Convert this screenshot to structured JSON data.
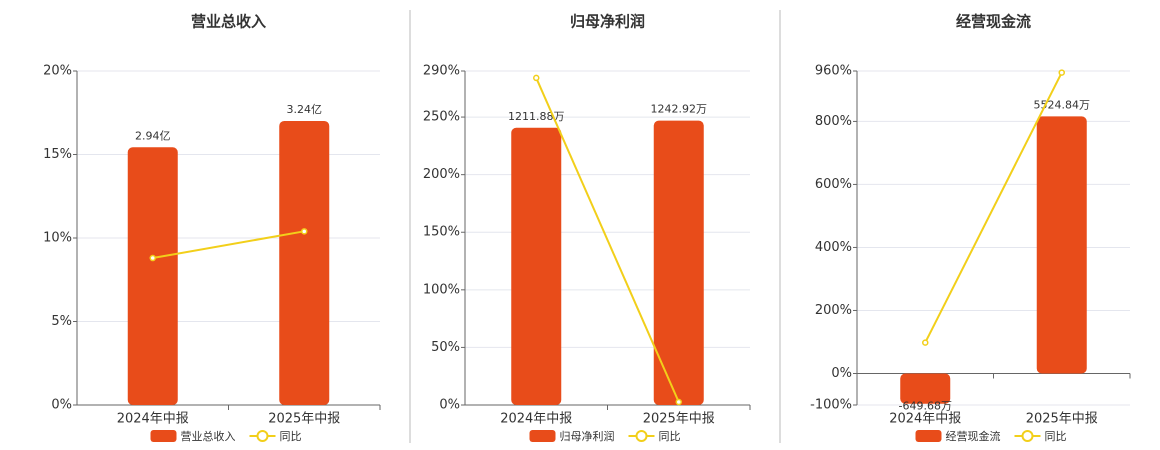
{
  "chart_data": [
    {
      "type": "bar",
      "title": "营业总收入",
      "categories": [
        "2024年中报",
        "2025年中报"
      ],
      "ylim": [
        0,
        20
      ],
      "yticks": [
        {
          "value": 0,
          "label": "0%"
        },
        {
          "value": 5,
          "label": "5%"
        },
        {
          "value": 10,
          "label": "10%"
        },
        {
          "value": 15,
          "label": "15%"
        },
        {
          "value": 20,
          "label": "20%"
        }
      ],
      "y2lim": [
        0,
        3.81
      ],
      "grid": true,
      "series": [
        {
          "name": "营业总收入",
          "type": "bar",
          "axis": "y2",
          "color": "#e84c1a",
          "values": [
            2.94,
            3.24
          ],
          "value_labels": [
            "2.94亿",
            "3.24亿"
          ]
        },
        {
          "name": "同比",
          "type": "line",
          "color": "#f2cf1a",
          "values": [
            8.8,
            10.4
          ]
        }
      ]
    },
    {
      "type": "bar",
      "title": "归母净利润",
      "categories": [
        "2024年中报",
        "2025年中报"
      ],
      "ylim": [
        0,
        290
      ],
      "yticks": [
        {
          "value": 0,
          "label": "0%"
        },
        {
          "value": 50,
          "label": "50%"
        },
        {
          "value": 100,
          "label": "100%"
        },
        {
          "value": 150,
          "label": "150%"
        },
        {
          "value": 200,
          "label": "200%"
        },
        {
          "value": 250,
          "label": "250%"
        },
        {
          "value": 290,
          "label": "290%"
        }
      ],
      "y2lim": [
        0,
        1460
      ],
      "grid": true,
      "series": [
        {
          "name": "归母净利润",
          "type": "bar",
          "axis": "y2",
          "color": "#e84c1a",
          "values": [
            1211.88,
            1242.92
          ],
          "value_labels": [
            "1211.88万",
            "1242.92万"
          ]
        },
        {
          "name": "同比",
          "type": "line",
          "color": "#f2cf1a",
          "values": [
            284,
            2.6
          ]
        }
      ]
    },
    {
      "type": "bar",
      "title": "经营现金流",
      "categories": [
        "2024年中报",
        "2025年中报"
      ],
      "ylim": [
        -100,
        960
      ],
      "yticks": [
        {
          "value": -100,
          "label": "-100%"
        },
        {
          "value": 0,
          "label": "0%"
        },
        {
          "value": 200,
          "label": "200%"
        },
        {
          "value": 400,
          "label": "400%"
        },
        {
          "value": 600,
          "label": "600%"
        },
        {
          "value": 800,
          "label": "800%"
        },
        {
          "value": 960,
          "label": "960%"
        }
      ],
      "y2lim": [
        -677,
        6500
      ],
      "grid": true,
      "series": [
        {
          "name": "经营现金流",
          "type": "bar",
          "axis": "y2",
          "color": "#e84c1a",
          "values": [
            -649.68,
            5524.84
          ],
          "value_labels": [
            "-649.68万",
            "5524.84万"
          ]
        },
        {
          "name": "同比",
          "type": "line",
          "color": "#f2cf1a",
          "values": [
            98,
            955
          ]
        }
      ]
    }
  ]
}
